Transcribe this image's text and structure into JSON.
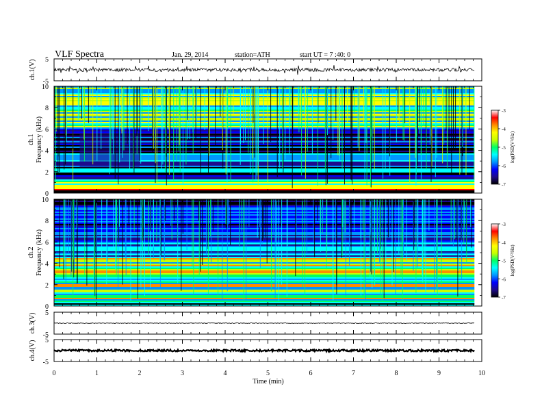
{
  "header": {
    "title": "VLF  Spectra",
    "date": "Jan. 29, 2014",
    "station": "station=ATH",
    "start": "start  UT  =   7 :40: 0"
  },
  "colors": {
    "colormap": [
      "#000000",
      "#1e0a8c",
      "#0000ff",
      "#0096ff",
      "#00ffff",
      "#00ff64",
      "#c8ff00",
      "#ffff00",
      "#ff8c00",
      "#ff0000",
      "#ffffff"
    ]
  },
  "chart_data": [
    {
      "id": "ch1-waveform",
      "type": "line",
      "ylabel": "ch.1(V)",
      "ylim": [
        -5,
        5
      ],
      "yticks": [
        "5",
        "-5"
      ],
      "xlim": [
        0,
        10
      ],
      "x_extent": [
        0,
        9.83
      ],
      "baseline": 0
    },
    {
      "id": "ch1-spectrogram",
      "type": "heatmap",
      "ylabel": "ch.1",
      "ylabel2": "Frequency  (kHz)",
      "ylim": [
        0,
        10
      ],
      "yticks": [
        "0",
        "2",
        "4",
        "6",
        "8",
        "10"
      ],
      "xlim": [
        0,
        10
      ],
      "x_extent": [
        0,
        9.83
      ],
      "colorbar": {
        "label": "log(PSD(V²/Hz)",
        "range": [
          -7,
          -3
        ],
        "ticks": [
          "-7",
          "-6",
          "-5",
          "-4",
          "-3"
        ]
      }
    },
    {
      "id": "ch2-spectrogram",
      "type": "heatmap",
      "ylabel": "ch.2",
      "ylabel2": "Frequency  (kHz)",
      "ylim": [
        0,
        10
      ],
      "yticks": [
        "0",
        "2",
        "4",
        "6",
        "8",
        "10"
      ],
      "xlim": [
        0,
        10
      ],
      "x_extent": [
        0,
        9.83
      ],
      "colorbar": {
        "label": "log(PSD(V²/Hz)",
        "range": [
          -7,
          -3
        ],
        "ticks": [
          "-7",
          "-6",
          "-5",
          "-4",
          "-3"
        ]
      }
    },
    {
      "id": "ch3-waveform",
      "type": "line",
      "ylabel": "ch.3(V)",
      "ylim": [
        -5,
        5
      ],
      "yticks": [
        "5",
        "-5"
      ],
      "xlim": [
        0,
        10
      ],
      "x_extent": [
        0,
        9.83
      ],
      "baseline": 0
    },
    {
      "id": "ch4-waveform",
      "type": "line",
      "ylabel": "ch.4(V)",
      "ylim": [
        -5,
        5
      ],
      "yticks": [
        "5",
        "-5"
      ],
      "xlim": [
        0,
        10
      ],
      "x_extent": [
        0,
        9.83
      ],
      "baseline": 0
    }
  ],
  "xaxis": {
    "label": "Time  (min)",
    "ticks": [
      "0",
      "1",
      "2",
      "3",
      "4",
      "5",
      "6",
      "7",
      "8",
      "9",
      "10"
    ]
  }
}
